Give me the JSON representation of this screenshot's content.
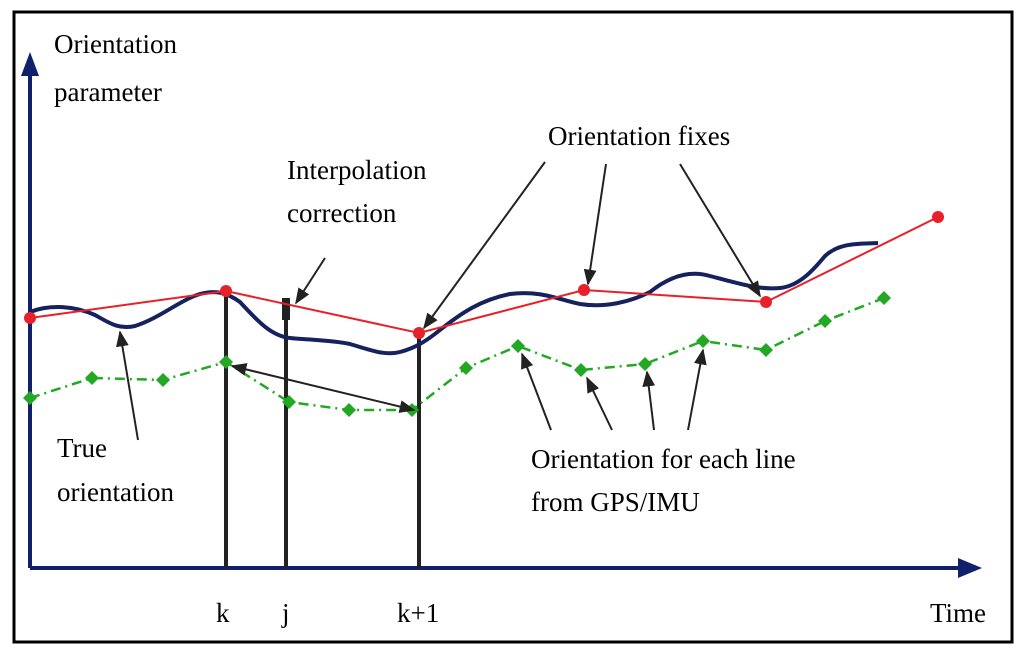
{
  "diagram": {
    "y_axis_label_line1": "Orientation",
    "y_axis_label_line2": "parameter",
    "x_axis_label": "Time",
    "tick_k": "k",
    "tick_j": "j",
    "tick_k1": "k+1",
    "interp_label_line1": "Interpolation",
    "interp_label_line2": "correction",
    "fixes_label": "Orientation fixes",
    "true_label_line1": "True",
    "true_label_line2": "orientation",
    "gps_label_line1": "Orientation for each line",
    "gps_label_line2": "from GPS/IMU"
  },
  "colors": {
    "axis": "#10206a",
    "true_orientation": "#16225e",
    "fixes": "#e8202a",
    "gps": "#22a822",
    "arrow": "#222222"
  }
}
